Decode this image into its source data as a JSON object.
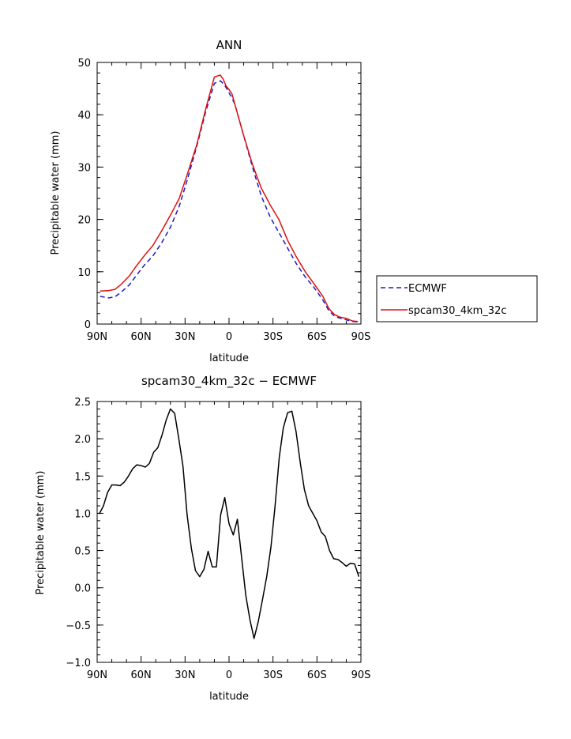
{
  "chart_data": [
    {
      "type": "line",
      "title": "ANN",
      "xlabel": "latitude",
      "ylabel": "Precipitable water (mm)",
      "xlim": [
        90,
        -90
      ],
      "ylim": [
        0,
        50
      ],
      "x_tick_values": [
        90,
        60,
        30,
        0,
        -30,
        -60,
        -90
      ],
      "x_tick_labels": [
        "90N",
        "60N",
        "30N",
        "0",
        "30S",
        "60S",
        "90S"
      ],
      "y_tick_values": [
        0,
        10,
        20,
        30,
        40,
        50
      ],
      "y_tick_labels": [
        "0",
        "10",
        "20",
        "30",
        "40",
        "50"
      ],
      "legend_position": "right",
      "series": [
        {
          "name": "ECMWF",
          "color": "#1a1acc",
          "style": "dashed",
          "x": [
            88,
            82,
            78,
            74,
            68,
            64,
            58,
            52,
            46,
            40,
            34,
            28,
            22,
            16,
            10,
            6,
            4,
            2,
            0,
            -2,
            -4,
            -6,
            -10,
            -16,
            -22,
            -28,
            -34,
            -40,
            -46,
            -52,
            -58,
            -64,
            -68,
            -72,
            -76,
            -80,
            -84,
            -88
          ],
          "values": [
            5.3,
            5.0,
            5.2,
            6.0,
            7.5,
            9.0,
            11.2,
            13.0,
            15.5,
            18.5,
            22.5,
            28.0,
            34.0,
            40.5,
            46.0,
            46.5,
            46.0,
            45.2,
            44.2,
            43.2,
            42.0,
            40.0,
            36.0,
            30.0,
            24.5,
            20.5,
            17.5,
            14.5,
            11.5,
            9.0,
            7.0,
            4.6,
            2.6,
            1.5,
            1.1,
            0.8,
            0.5,
            0.4
          ]
        },
        {
          "name": "spcam30_4km_32c",
          "color": "#dd1111",
          "style": "solid",
          "x": [
            88,
            82,
            78,
            74,
            68,
            64,
            58,
            52,
            46,
            40,
            34,
            28,
            22,
            16,
            10,
            6,
            4,
            2,
            0,
            -2,
            -4,
            -6,
            -10,
            -16,
            -22,
            -28,
            -34,
            -40,
            -46,
            -52,
            -58,
            -64,
            -68,
            -72,
            -76,
            -80,
            -84,
            -88
          ],
          "values": [
            6.3,
            6.4,
            6.6,
            7.5,
            9.2,
            10.8,
            13.0,
            15.0,
            17.8,
            20.8,
            24.0,
            29.0,
            34.3,
            41.0,
            47.2,
            47.6,
            46.8,
            45.5,
            44.8,
            44.0,
            42.0,
            40.0,
            36.0,
            30.5,
            26.0,
            22.8,
            20.0,
            16.0,
            12.8,
            10.0,
            7.7,
            5.3,
            3.0,
            1.8,
            1.3,
            1.1,
            0.6,
            0.5
          ]
        }
      ]
    },
    {
      "type": "line",
      "title": "spcam30_4km_32c − ECMWF",
      "xlabel": "latitude",
      "ylabel": "Precipitable water (mm)",
      "xlim": [
        90,
        -90
      ],
      "ylim": [
        -1.0,
        2.5
      ],
      "x_tick_values": [
        90,
        60,
        30,
        0,
        -30,
        -60,
        -90
      ],
      "x_tick_labels": [
        "90N",
        "60N",
        "30N",
        "0",
        "30S",
        "60S",
        "90S"
      ],
      "y_tick_values": [
        -1.0,
        -0.5,
        0.0,
        0.5,
        1.0,
        1.5,
        2.0,
        2.5
      ],
      "y_tick_labels": [
        "−1.0",
        "−0.5",
        "0.0",
        "0.5",
        "1.0",
        "1.5",
        "2.0",
        "2.5"
      ],
      "series": [
        {
          "color": "#000000",
          "style": "solid",
          "x": [
            88.6,
            85.7,
            82.9,
            80.0,
            77.1,
            74.3,
            71.4,
            68.6,
            65.7,
            62.9,
            60.0,
            57.1,
            54.3,
            51.4,
            48.6,
            45.7,
            42.9,
            40.0,
            37.1,
            34.3,
            31.4,
            28.6,
            25.7,
            22.9,
            20.0,
            17.1,
            14.3,
            11.4,
            8.6,
            5.7,
            2.9,
            0.0,
            -2.9,
            -5.7,
            -8.6,
            -11.4,
            -14.3,
            -17.1,
            -20.0,
            -22.9,
            -25.7,
            -28.6,
            -31.4,
            -34.3,
            -37.1,
            -40.0,
            -42.9,
            -45.7,
            -48.6,
            -51.4,
            -54.3,
            -57.1,
            -60.0,
            -62.9,
            -65.7,
            -68.6,
            -71.4,
            -74.3,
            -77.1,
            -80.0,
            -82.9,
            -85.7,
            -88.6
          ],
          "values": [
            0.99,
            1.1,
            1.28,
            1.38,
            1.38,
            1.37,
            1.42,
            1.5,
            1.6,
            1.65,
            1.64,
            1.62,
            1.67,
            1.82,
            1.88,
            2.05,
            2.25,
            2.4,
            2.34,
            2.0,
            1.63,
            0.98,
            0.53,
            0.23,
            0.15,
            0.25,
            0.49,
            0.28,
            0.28,
            0.98,
            1.21,
            0.86,
            0.71,
            0.92,
            0.4,
            -0.1,
            -0.43,
            -0.68,
            -0.45,
            -0.15,
            0.15,
            0.55,
            1.1,
            1.75,
            2.15,
            2.35,
            2.37,
            2.1,
            1.68,
            1.32,
            1.1,
            1.0,
            0.9,
            0.75,
            0.69,
            0.5,
            0.39,
            0.38,
            0.34,
            0.29,
            0.33,
            0.32,
            0.15
          ]
        }
      ]
    }
  ]
}
